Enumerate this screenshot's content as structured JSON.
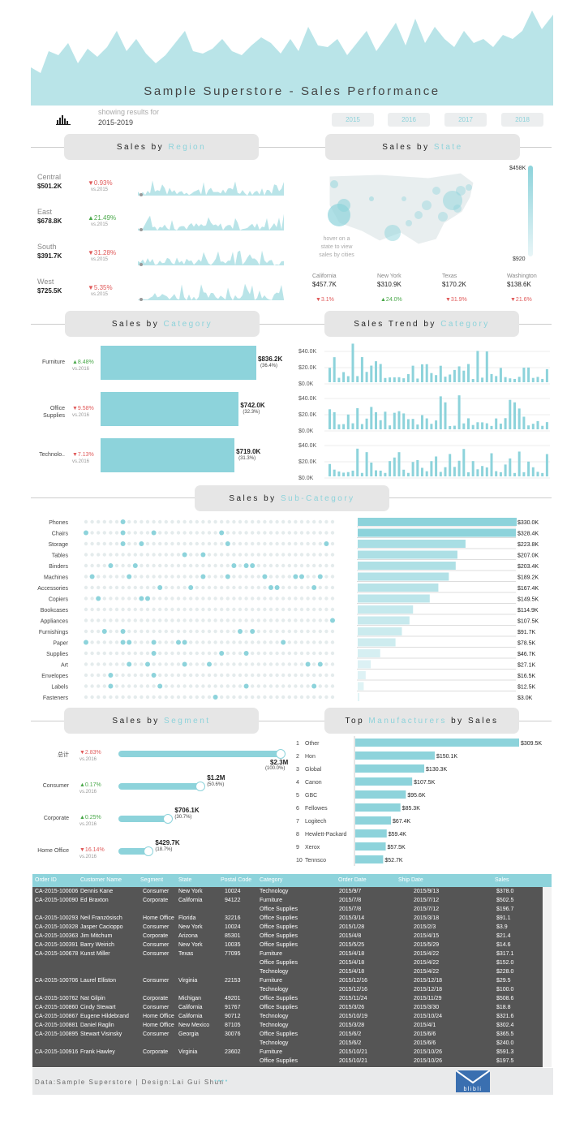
{
  "title": "Sample Superstore - Sales Performance",
  "subtitle": {
    "line1": "showing results for",
    "line2": "2015-2019"
  },
  "logo_icon": "bar-chart-logo-icon",
  "years": [
    "2015",
    "2016",
    "2017",
    "2018"
  ],
  "sections": {
    "region": {
      "pre": "Sales by ",
      "acc": "Region"
    },
    "state": {
      "pre": "Sales by ",
      "acc": "State"
    },
    "category": {
      "pre": "Sales by ",
      "acc": "Category"
    },
    "trend": {
      "pre": "Sales Trend by ",
      "acc": "Category"
    },
    "subcat": {
      "pre": "Sales by ",
      "acc": "Sub-Category"
    },
    "segment": {
      "pre": "Sales by ",
      "acc": "Segment"
    },
    "manuf": {
      "pre": "Top ",
      "acc": "Manufacturers",
      "post": " by Sales"
    }
  },
  "regions": [
    {
      "name": "Central",
      "value": "$501.2K",
      "delta": "▼0.93%",
      "vs": "vs.2015",
      "trend": "down"
    },
    {
      "name": "East",
      "value": "$678.8K",
      "delta": "▲21.49%",
      "vs": "vs.2015",
      "trend": "up"
    },
    {
      "name": "South",
      "value": "$391.7K",
      "delta": "▼31.28%",
      "vs": "vs.2015",
      "trend": "down"
    },
    {
      "name": "West",
      "value": "$725.5K",
      "delta": "▼5.35%",
      "vs": "vs.2015",
      "trend": "down"
    }
  ],
  "map": {
    "hover_text": "hover on a state to view sales by cities",
    "legend_max": "$458K",
    "legend_min": "$920"
  },
  "top_states": [
    {
      "name": "California",
      "value": "$457.7K",
      "delta": "▼3.1%",
      "trend": "down"
    },
    {
      "name": "New York",
      "value": "$310.9K",
      "delta": "▲24.0%",
      "trend": "up"
    },
    {
      "name": "Texas",
      "value": "$170.2K",
      "delta": "▼31.9%",
      "trend": "down"
    },
    {
      "name": "Washington",
      "value": "$138.6K",
      "delta": "▼21.6%",
      "trend": "down"
    }
  ],
  "categories": [
    {
      "name": "Furniture",
      "delta": "▲8.48%",
      "vs": "vs.2016",
      "value": "$836.2K",
      "pct": "(36.4%)",
      "trend": "up",
      "sales": 836.2
    },
    {
      "name": "Office Supplies",
      "delta": "▼9.58%",
      "vs": "vs.2016",
      "value": "$742.0K",
      "pct": "(32.3%)",
      "trend": "down",
      "sales": 742.0
    },
    {
      "name": "Technolo..",
      "delta": "▼7.13%",
      "vs": "vs.2016",
      "value": "$719.0K",
      "pct": "(31.3%)",
      "trend": "down",
      "sales": 719.0
    }
  ],
  "trend_axis": [
    "$40.0K",
    "$20.0K",
    "$0.0K"
  ],
  "subcategories": [
    {
      "name": "Phones",
      "value": "$330.0K",
      "sales": 330.0
    },
    {
      "name": "Chairs",
      "value": "$328.4K",
      "sales": 328.4
    },
    {
      "name": "Storage",
      "value": "$223.8K",
      "sales": 223.8
    },
    {
      "name": "Tables",
      "value": "$207.0K",
      "sales": 207.0
    },
    {
      "name": "Binders",
      "value": "$203.4K",
      "sales": 203.4
    },
    {
      "name": "Machines",
      "value": "$189.2K",
      "sales": 189.2
    },
    {
      "name": "Accessories",
      "value": "$167.4K",
      "sales": 167.4
    },
    {
      "name": "Copiers",
      "value": "$149.5K",
      "sales": 149.5
    },
    {
      "name": "Bookcases",
      "value": "$114.9K",
      "sales": 114.9
    },
    {
      "name": "Appliances",
      "value": "$107.5K",
      "sales": 107.5
    },
    {
      "name": "Furnishings",
      "value": "$91.7K",
      "sales": 91.7
    },
    {
      "name": "Paper",
      "value": "$78.5K",
      "sales": 78.5
    },
    {
      "name": "Supplies",
      "value": "$46.7K",
      "sales": 46.7
    },
    {
      "name": "Art",
      "value": "$27.1K",
      "sales": 27.1
    },
    {
      "name": "Envelopes",
      "value": "$16.5K",
      "sales": 16.5
    },
    {
      "name": "Labels",
      "value": "$12.5K",
      "sales": 12.5
    },
    {
      "name": "Fasteners",
      "value": "$3.0K",
      "sales": 3.0
    }
  ],
  "segments": [
    {
      "name": "总计",
      "delta": "▼2.83%",
      "vs": "vs.2016",
      "value": "$2.3M",
      "pct": "(100.0%)",
      "trend": "down",
      "frac": 1.0
    },
    {
      "name": "Consumer",
      "delta": "▲0.17%",
      "vs": "vs.2016",
      "value": "$1.2M",
      "pct": "(50.6%)",
      "trend": "up",
      "frac": 0.506
    },
    {
      "name": "Corporate",
      "delta": "▲0.25%",
      "vs": "vs.2016",
      "value": "$706.1K",
      "pct": "(30.7%)",
      "trend": "up",
      "frac": 0.307
    },
    {
      "name": "Home Office",
      "delta": "▼16.14%",
      "vs": "vs.2016",
      "value": "$429.7K",
      "pct": "(18.7%)",
      "trend": "down",
      "frac": 0.187
    }
  ],
  "manufacturers": [
    {
      "rank": "1",
      "name": "Other",
      "value": "$309.5K",
      "sales": 309.5
    },
    {
      "rank": "2",
      "name": "Hon",
      "value": "$150.1K",
      "sales": 150.1
    },
    {
      "rank": "3",
      "name": "Global",
      "value": "$130.3K",
      "sales": 130.3
    },
    {
      "rank": "4",
      "name": "Canon",
      "value": "$107.5K",
      "sales": 107.5
    },
    {
      "rank": "5",
      "name": "GBC",
      "value": "$95.6K",
      "sales": 95.6
    },
    {
      "rank": "6",
      "name": "Fellowes",
      "value": "$85.3K",
      "sales": 85.3
    },
    {
      "rank": "7",
      "name": "Logitech",
      "value": "$67.4K",
      "sales": 67.4
    },
    {
      "rank": "8",
      "name": "Hewlett-Packard",
      "value": "$59.4K",
      "sales": 59.4
    },
    {
      "rank": "9",
      "name": "Xerox",
      "value": "$57.5K",
      "sales": 57.5
    },
    {
      "rank": "10",
      "name": "Tennsco",
      "value": "$52.7K",
      "sales": 52.7
    }
  ],
  "table": {
    "headers": [
      "Order ID",
      "Customer Name",
      "Segment",
      "State",
      "Postal Code",
      "Category",
      "Order Date",
      "Ship Date",
      "Sales"
    ],
    "rows": [
      [
        "CA-2015-100006",
        "Dennis Kane",
        "Consumer",
        "New York",
        "10024",
        "Technology",
        "2015/9/7",
        "2015/9/13",
        "$378.0"
      ],
      [
        "CA-2015-100090",
        "Ed Braxton",
        "Corporate",
        "California",
        "94122",
        "Furniture",
        "2015/7/8",
        "2015/7/12",
        "$502.5"
      ],
      [
        "",
        "",
        "",
        "",
        "",
        "Office Supplies",
        "2015/7/8",
        "2015/7/12",
        "$196.7"
      ],
      [
        "CA-2015-100293",
        "Neil Französisch",
        "Home Office",
        "Florida",
        "32216",
        "Office Supplies",
        "2015/3/14",
        "2015/3/18",
        "$91.1"
      ],
      [
        "CA-2015-100328",
        "Jasper Cacioppo",
        "Consumer",
        "New York",
        "10024",
        "Office Supplies",
        "2015/1/28",
        "2015/2/3",
        "$3.9"
      ],
      [
        "CA-2015-100363",
        "Jim Mitchum",
        "Corporate",
        "Arizona",
        "85301",
        "Office Supplies",
        "2015/4/8",
        "2015/4/15",
        "$21.4"
      ],
      [
        "CA-2015-100391",
        "Barry Weirich",
        "Consumer",
        "New York",
        "10035",
        "Office Supplies",
        "2015/5/25",
        "2015/5/29",
        "$14.6"
      ],
      [
        "CA-2015-100678",
        "Kunst Miller",
        "Consumer",
        "Texas",
        "77095",
        "Furniture",
        "2015/4/18",
        "2015/4/22",
        "$317.1"
      ],
      [
        "",
        "",
        "",
        "",
        "",
        "Office Supplies",
        "2015/4/18",
        "2015/4/22",
        "$152.0"
      ],
      [
        "",
        "",
        "",
        "",
        "",
        "Technology",
        "2015/4/18",
        "2015/4/22",
        "$228.0"
      ],
      [
        "CA-2015-100706",
        "Laurel Elliston",
        "Consumer",
        "Virginia",
        "22153",
        "Furniture",
        "2015/12/16",
        "2015/12/18",
        "$29.5"
      ],
      [
        "",
        "",
        "",
        "",
        "",
        "Technology",
        "2015/12/16",
        "2015/12/18",
        "$100.0"
      ],
      [
        "CA-2015-100762",
        "Nat Gilpin",
        "Corporate",
        "Michigan",
        "49201",
        "Office Supplies",
        "2015/11/24",
        "2015/11/29",
        "$508.6"
      ],
      [
        "CA-2015-100860",
        "Cindy Stewart",
        "Consumer",
        "California",
        "91767",
        "Office Supplies",
        "2015/3/26",
        "2015/3/30",
        "$18.8"
      ],
      [
        "CA-2015-100867",
        "Eugene Hildebrand",
        "Home Office",
        "California",
        "90712",
        "Technology",
        "2015/10/19",
        "2015/10/24",
        "$321.6"
      ],
      [
        "CA-2015-100881",
        "Daniel Raglin",
        "Home Office",
        "New Mexico",
        "87105",
        "Technology",
        "2015/3/28",
        "2015/4/1",
        "$302.4"
      ],
      [
        "CA-2015-100895",
        "Stewart Visinsky",
        "Consumer",
        "Georgia",
        "30076",
        "Office Supplies",
        "2015/6/2",
        "2015/6/6",
        "$365.5"
      ],
      [
        "",
        "",
        "",
        "",
        "",
        "Technology",
        "2015/6/2",
        "2015/6/6",
        "$240.0"
      ],
      [
        "CA-2015-100916",
        "Frank Hawley",
        "Corporate",
        "Virginia",
        "23602",
        "Furniture",
        "2015/10/21",
        "2015/10/26",
        "$591.3"
      ],
      [
        "",
        "",
        "",
        "",
        "",
        "Office Supplies",
        "2015/10/21",
        "2015/10/26",
        "$197.5"
      ]
    ]
  },
  "footer": {
    "text": "Data:Sample Superstore | Design:Lai Gui Shun",
    "dots": "●●●●",
    "logo": "blibli"
  },
  "colors": {
    "accent": "#8dd3db",
    "pill": "#e6e6e6",
    "down": "#e05a5a",
    "up": "#4aa84a",
    "table_bg": "#555555"
  }
}
